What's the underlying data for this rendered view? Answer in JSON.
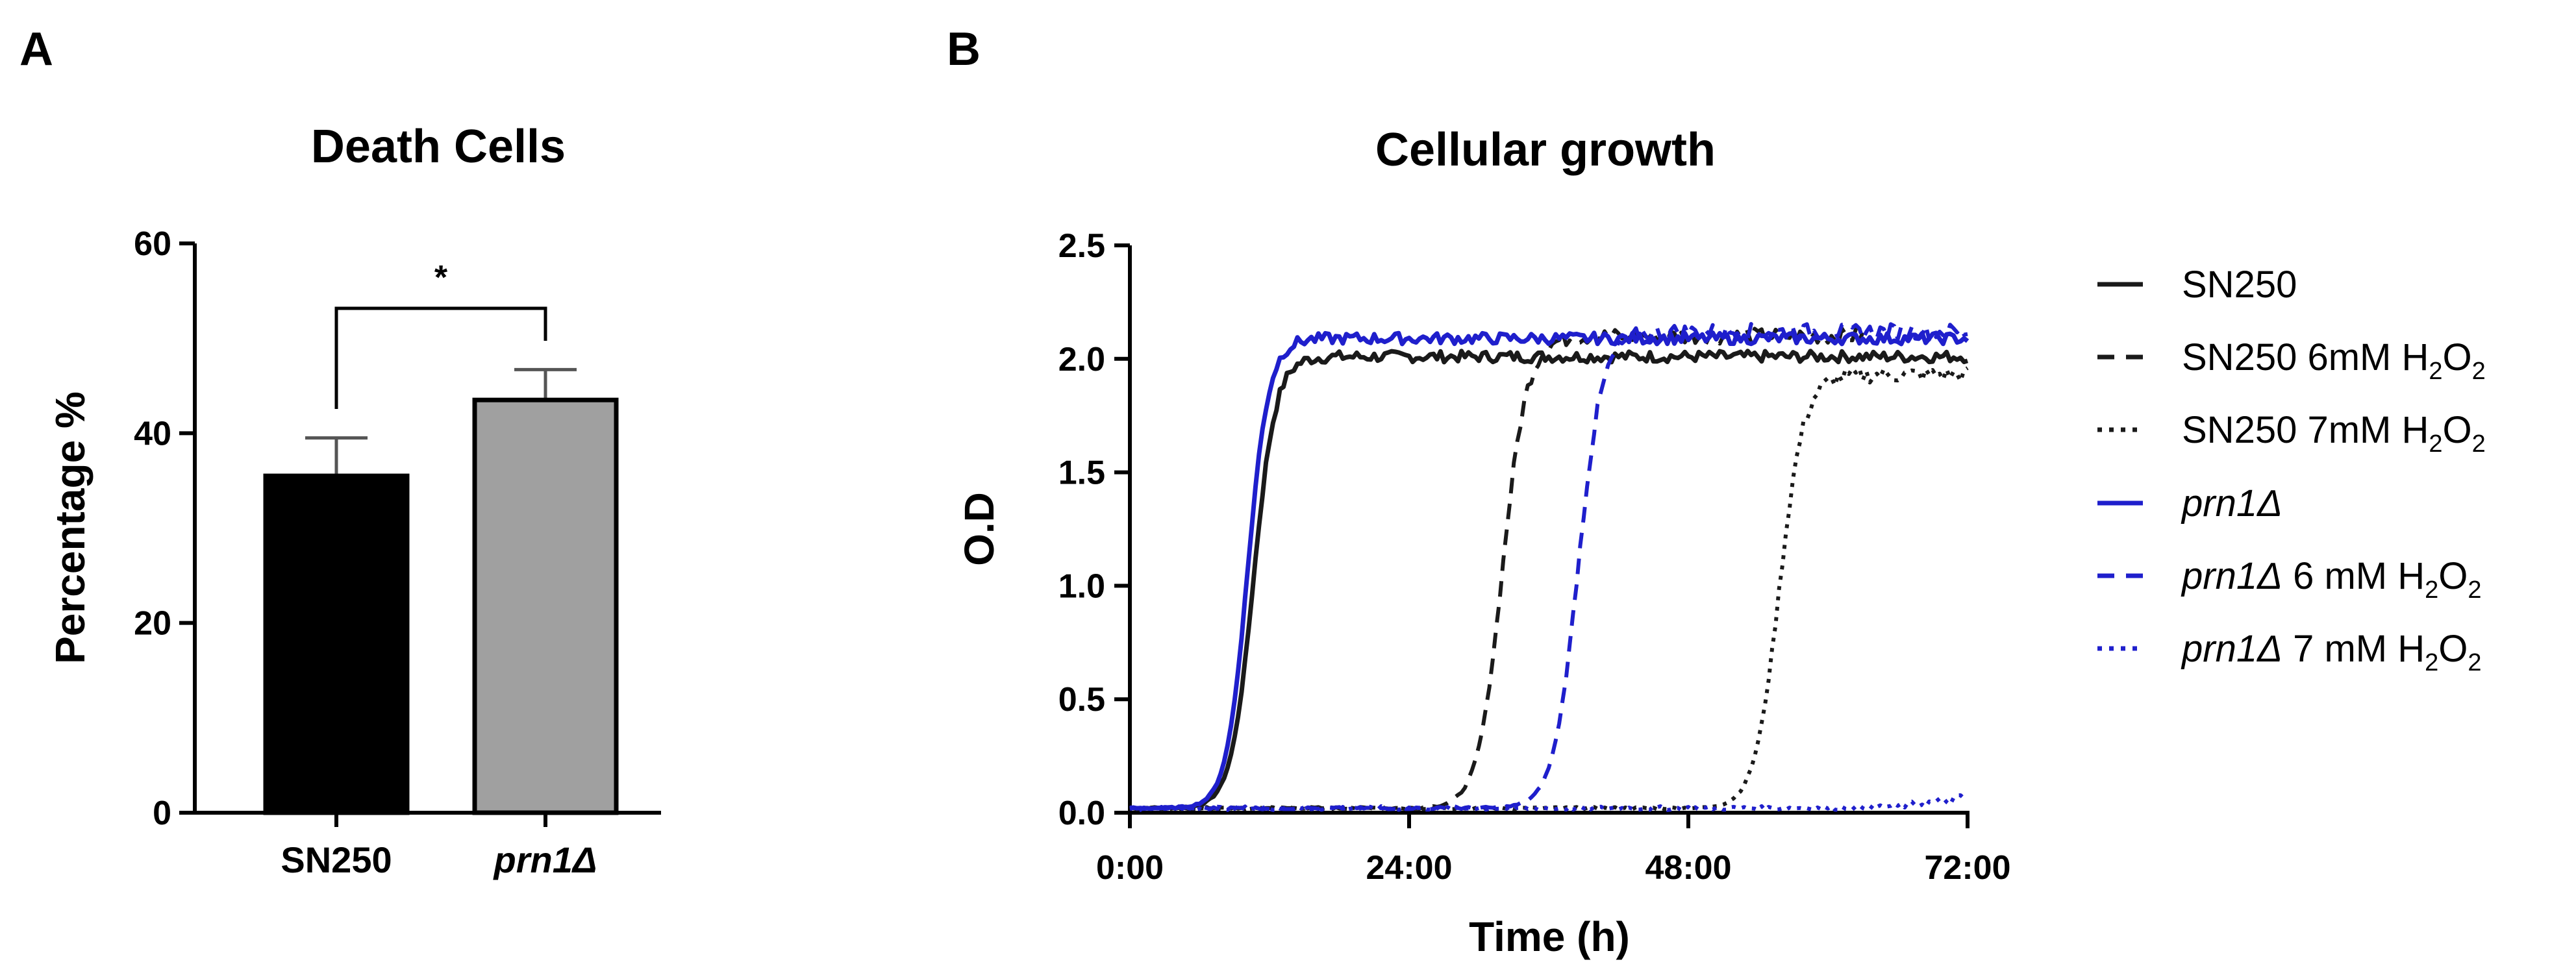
{
  "panels": {
    "a": {
      "label": "A"
    },
    "b": {
      "label": "B"
    }
  },
  "chart_data": [
    {
      "type": "bar",
      "title": "Death Cells",
      "xlabel": "",
      "ylabel": "Percentage %",
      "ylim": [
        0,
        60
      ],
      "yticks": [
        0,
        20,
        40,
        60
      ],
      "categories": [
        "SN250",
        "prn1Δ"
      ],
      "values": [
        35.5,
        43.5
      ],
      "errors": [
        4.0,
        3.2
      ],
      "colors": [
        "#000000",
        "#a0a0a0"
      ],
      "significance": {
        "between": [
          0,
          1
        ],
        "label": "*"
      }
    },
    {
      "type": "line",
      "title": "Cellular growth",
      "xlabel": "Time (h)",
      "ylabel": "O.D",
      "xlim": [
        0,
        72
      ],
      "ylim": [
        0,
        2.5
      ],
      "xticks": [
        0,
        24,
        48,
        72
      ],
      "xtick_labels": [
        "0:00",
        "24:00",
        "48:00",
        "72:00"
      ],
      "yticks": [
        0.0,
        0.5,
        1.0,
        1.5,
        2.0,
        2.5
      ],
      "ytick_labels": [
        "0.0",
        "0.5",
        "1.0",
        "1.5",
        "2.0",
        "2.5"
      ],
      "series": [
        {
          "name": "SN250",
          "italic_part": "",
          "suffix": "",
          "color": "#1a1a1a",
          "dash": "solid",
          "plateau": 2.01,
          "midpoint": 10.6,
          "rate": 1.05,
          "end_hours": 72
        },
        {
          "name": "SN250 6mM H2O2",
          "italic_part": "",
          "suffix": "6mM H",
          "color": "#1a1a1a",
          "dash": "dashed",
          "plateau": 2.1,
          "midpoint": 32.0,
          "rate": 0.95,
          "end_hours": 63
        },
        {
          "name": "SN250 7mM H2O2",
          "italic_part": "",
          "suffix": "7mM H",
          "color": "#1a1a1a",
          "dash": "dotted",
          "plateau": 1.93,
          "midpoint": 55.8,
          "rate": 0.95,
          "end_hours": 72
        },
        {
          "name": "prn1Δ",
          "italic_part": "prn1Δ",
          "suffix": "",
          "color": "#1f1fcc",
          "dash": "solid",
          "plateau": 2.09,
          "midpoint": 10.1,
          "rate": 1.1,
          "end_hours": 72
        },
        {
          "name": "prn1Δ 6 mM H2O2",
          "italic_part": "prn1Δ",
          "suffix": "6 mM H",
          "color": "#1f1fcc",
          "dash": "dashed",
          "plateau": 2.12,
          "midpoint": 38.5,
          "rate": 0.95,
          "end_hours": 72
        },
        {
          "name": "prn1Δ 7 mM H2O2",
          "italic_part": "prn1Δ",
          "suffix": "7 mM H",
          "color": "#1f1fcc",
          "dash": "dotted",
          "plateau": 0.08,
          "midpoint": 70.0,
          "rate": 0.4,
          "end_hours": 72
        }
      ],
      "legend_labels": {
        "sn250": "SN250",
        "sn250_base": "SN250",
        "h2o2_h": "H",
        "h2o2_o": "O",
        "sub_2": "2",
        "prn1": "prn1Δ"
      }
    }
  ]
}
